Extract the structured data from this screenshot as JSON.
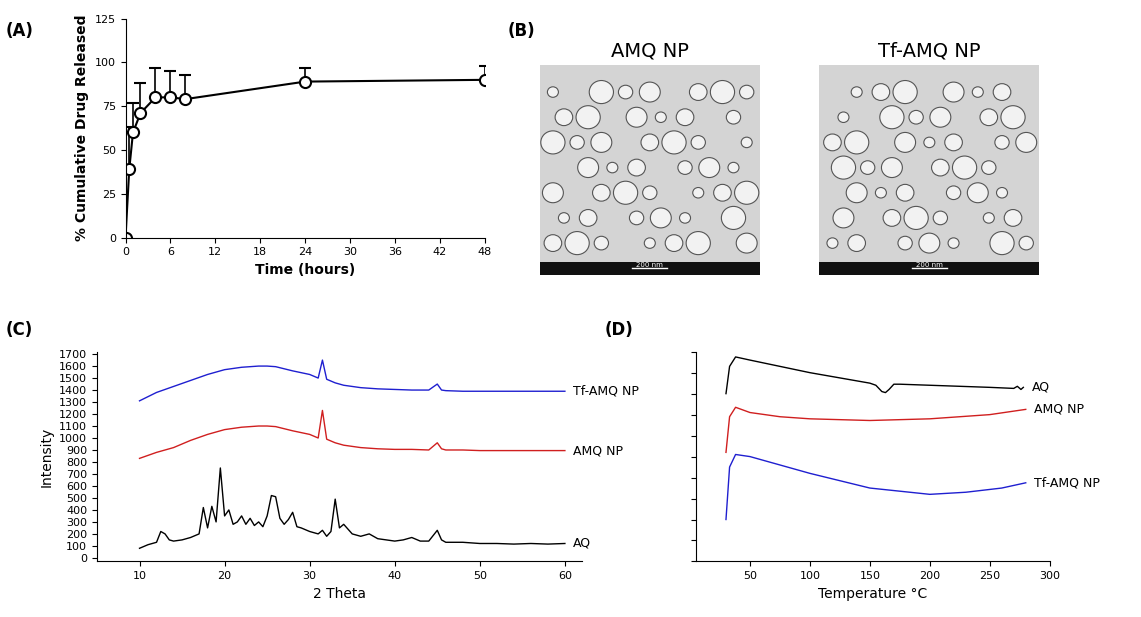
{
  "chart_data": [
    {
      "type": "line",
      "panel_label": "(A)",
      "x_label": "Time (hours)",
      "y_label": "% Cumulative Drug Released",
      "xlim": [
        0,
        48
      ],
      "xticks": [
        0,
        6,
        12,
        18,
        24,
        30,
        36,
        42,
        48
      ],
      "ylim": [
        0,
        125
      ],
      "yticks": [
        0,
        25,
        50,
        75,
        100,
        125
      ],
      "series": [
        {
          "color": "#000000",
          "marker": "circle",
          "line_style": "solid",
          "x": [
            0,
            0.5,
            1,
            2,
            4,
            6,
            8,
            24,
            48
          ],
          "values": [
            0,
            39,
            60,
            71,
            80,
            80,
            79,
            89,
            90
          ],
          "error": [
            0,
            24,
            17,
            17,
            17,
            15,
            14,
            8,
            8
          ]
        }
      ]
    },
    {
      "type": "image",
      "panel_label": "(B)",
      "images": [
        {
          "title": "AMQ NP",
          "annotations": [
            "200 nm"
          ]
        },
        {
          "title": "Tf-AMQ NP",
          "annotations": [
            "200 nm"
          ]
        }
      ]
    },
    {
      "type": "line",
      "panel_label": "(C)",
      "x_label": "2 Theta",
      "y_label": "Intensity",
      "xlim": [
        5,
        62
      ],
      "xticks": [
        10,
        20,
        30,
        40,
        50,
        60
      ],
      "ylim": [
        -30,
        1720
      ],
      "yticks": [
        0,
        100,
        200,
        300,
        400,
        500,
        600,
        700,
        800,
        900,
        1000,
        1100,
        1200,
        1300,
        1400,
        1500,
        1600,
        1700
      ],
      "series": [
        {
          "name": "Tf-AMQ NP",
          "color": "#1f1fd0",
          "line_style": "solid",
          "x": [
            10,
            12,
            14,
            16,
            18,
            20,
            22,
            24,
            25,
            26,
            28,
            30,
            31,
            31.5,
            32,
            33,
            34,
            36,
            38,
            40,
            42,
            44,
            45,
            45.5,
            46,
            48,
            50,
            52,
            54,
            56,
            58,
            60
          ],
          "values": [
            1310,
            1380,
            1430,
            1480,
            1530,
            1570,
            1590,
            1600,
            1600,
            1595,
            1560,
            1530,
            1500,
            1650,
            1490,
            1460,
            1440,
            1420,
            1410,
            1405,
            1400,
            1400,
            1450,
            1400,
            1395,
            1390,
            1390,
            1390,
            1390,
            1390,
            1390,
            1390
          ]
        },
        {
          "name": "AMQ NP",
          "color": "#d01f1f",
          "line_style": "solid",
          "x": [
            10,
            12,
            14,
            16,
            18,
            20,
            22,
            24,
            25,
            26,
            28,
            30,
            31,
            31.5,
            32,
            33,
            34,
            36,
            38,
            40,
            42,
            44,
            45,
            45.5,
            46,
            48,
            50,
            52,
            54,
            56,
            58,
            60
          ],
          "values": [
            830,
            880,
            920,
            980,
            1030,
            1070,
            1090,
            1100,
            1100,
            1095,
            1060,
            1030,
            1000,
            1230,
            990,
            960,
            940,
            920,
            910,
            905,
            905,
            900,
            960,
            910,
            900,
            900,
            895,
            895,
            895,
            895,
            895,
            895
          ]
        },
        {
          "name": "AQ",
          "color": "#000000",
          "line_style": "solid",
          "x": [
            10,
            11,
            12,
            12.5,
            13,
            13.5,
            14,
            15,
            16,
            17,
            17.5,
            18,
            18.5,
            19,
            19.5,
            20,
            20.5,
            21,
            21.5,
            22,
            22.5,
            23,
            23.5,
            24,
            24.5,
            25,
            25.5,
            26,
            26.5,
            27,
            27.5,
            28,
            28.5,
            29,
            30,
            31,
            31.5,
            32,
            32.5,
            33,
            33.5,
            34,
            35,
            36,
            37,
            38,
            39,
            40,
            41,
            42,
            43,
            44,
            45,
            45.5,
            46,
            48,
            50,
            52,
            54,
            56,
            58,
            60
          ],
          "values": [
            80,
            110,
            130,
            220,
            200,
            150,
            140,
            150,
            170,
            200,
            420,
            250,
            430,
            300,
            750,
            350,
            400,
            280,
            300,
            350,
            280,
            330,
            270,
            300,
            260,
            350,
            520,
            510,
            330,
            280,
            320,
            380,
            260,
            250,
            220,
            200,
            230,
            180,
            220,
            490,
            250,
            280,
            200,
            180,
            200,
            160,
            150,
            140,
            150,
            170,
            140,
            140,
            230,
            150,
            130,
            130,
            120,
            120,
            115,
            120,
            115,
            120
          ]
        }
      ]
    },
    {
      "type": "line",
      "panel_label": "(D)",
      "x_label": "Temperature °C",
      "xlim": [
        5,
        300
      ],
      "xticks": [
        50,
        100,
        150,
        200,
        250,
        300
      ],
      "ylim": [
        0,
        10
      ],
      "yticks": [
        0,
        1,
        2,
        3,
        4,
        5,
        6,
        7,
        8,
        9,
        10
      ],
      "tick_labels": "x",
      "series": [
        {
          "name": "AQ",
          "color": "#000000",
          "line_style": "solid",
          "x": [
            30,
            33,
            38,
            50,
            75,
            100,
            125,
            150,
            155,
            160,
            163,
            166,
            170,
            175,
            200,
            225,
            250,
            270,
            273,
            276,
            278
          ],
          "values": [
            8.0,
            9.3,
            9.75,
            9.6,
            9.3,
            9.0,
            8.75,
            8.5,
            8.4,
            8.1,
            8.05,
            8.2,
            8.45,
            8.45,
            8.4,
            8.35,
            8.3,
            8.25,
            8.35,
            8.2,
            8.3
          ]
        },
        {
          "name": "AMQ NP",
          "color": "#d01f1f",
          "line_style": "solid",
          "x": [
            30,
            33,
            38,
            50,
            75,
            100,
            150,
            200,
            250,
            280
          ],
          "values": [
            5.2,
            6.9,
            7.35,
            7.1,
            6.9,
            6.8,
            6.72,
            6.8,
            7.0,
            7.25
          ]
        },
        {
          "name": "Tf-AMQ NP",
          "color": "#1f1fd0",
          "line_style": "solid",
          "x": [
            30,
            33,
            38,
            50,
            75,
            100,
            150,
            200,
            230,
            260,
            280
          ],
          "values": [
            2.0,
            4.5,
            5.1,
            5.0,
            4.6,
            4.2,
            3.5,
            3.2,
            3.3,
            3.5,
            3.75
          ]
        }
      ]
    }
  ]
}
